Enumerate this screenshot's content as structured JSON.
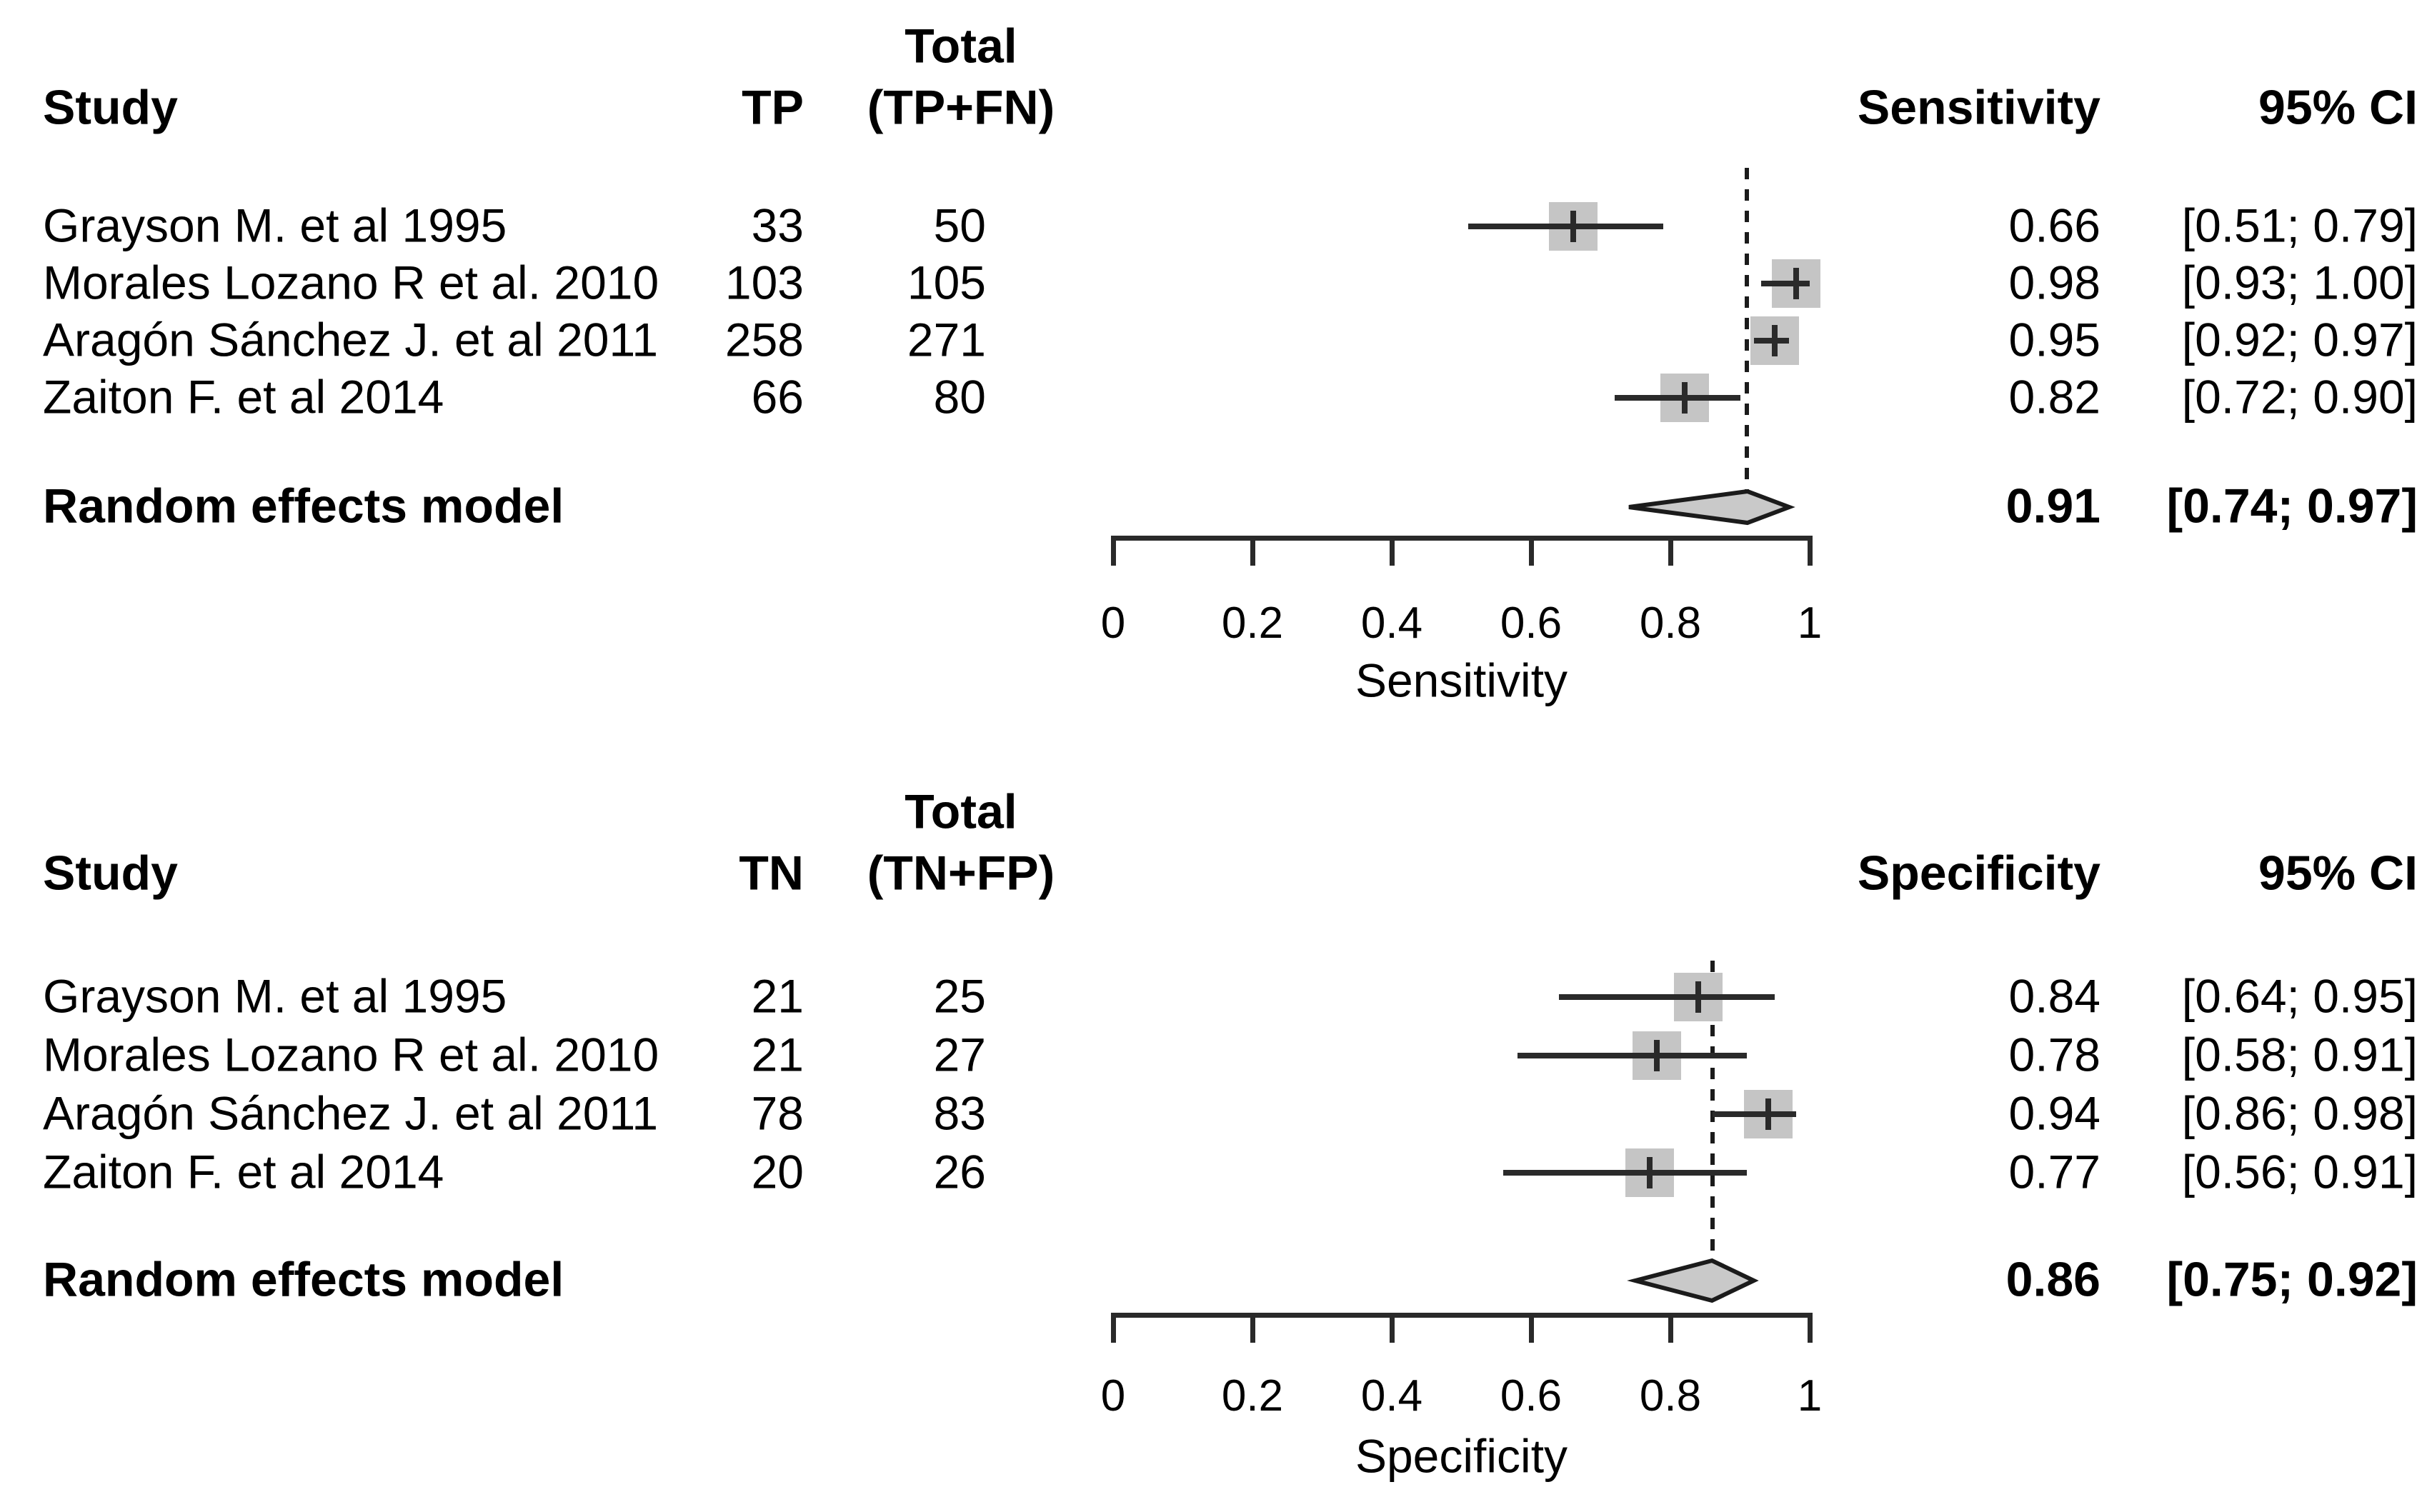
{
  "page": {
    "background": "#ffffff",
    "text_color": "#000000"
  },
  "colors": {
    "marker_fill": "#c5c5c5",
    "diamond_fill": "#c9c9c9",
    "line": "#2a2a2a",
    "reference_line": "#1b1b1b",
    "text": "#000000",
    "background": "#ffffff"
  },
  "chart_data": [
    {
      "type": "forest",
      "panel": "sensitivity",
      "columns": {
        "study": "Study",
        "count": "TP",
        "total_line1": "Total",
        "total_line2": "(TP+FN)",
        "estimate": "Sensitivity",
        "ci": "95% CI"
      },
      "rows": [
        {
          "study": "Grayson M. et al 1995",
          "count": "33",
          "total": "50",
          "estimate": 0.66,
          "estimate_label": "0.66",
          "ci_lower": 0.51,
          "ci_upper": 0.79,
          "ci_label": "[0.51; 0.79]"
        },
        {
          "study": "Morales Lozano R et al. 2010",
          "count": "103",
          "total": "105",
          "estimate": 0.98,
          "estimate_label": "0.98",
          "ci_lower": 0.93,
          "ci_upper": 1.0,
          "ci_label": "[0.93; 1.00]"
        },
        {
          "study": "Aragón Sánchez J. et al 2011",
          "count": "258",
          "total": "271",
          "estimate": 0.95,
          "estimate_label": "0.95",
          "ci_lower": 0.92,
          "ci_upper": 0.97,
          "ci_label": "[0.92; 0.97]"
        },
        {
          "study": "Zaiton F. et al 2014",
          "count": "66",
          "total": "80",
          "estimate": 0.82,
          "estimate_label": "0.82",
          "ci_lower": 0.72,
          "ci_upper": 0.9,
          "ci_label": "[0.72; 0.90]"
        }
      ],
      "summary": {
        "label": "Random effects model",
        "estimate": 0.91,
        "estimate_label": "0.91",
        "ci_lower": 0.74,
        "ci_upper": 0.97,
        "ci_label": "[0.74; 0.97]"
      },
      "axis": {
        "min": 0,
        "max": 1,
        "tick_values": [
          0,
          0.2,
          0.4,
          0.6,
          0.8,
          1
        ],
        "ticks": [
          "0",
          "0.2",
          "0.4",
          "0.6",
          "0.8",
          "1"
        ],
        "label": "Sensitivity",
        "reference_line": 0.91,
        "grid": false
      }
    },
    {
      "type": "forest",
      "panel": "specificity",
      "columns": {
        "study": "Study",
        "count": "TN",
        "total_line1": "Total",
        "total_line2": "(TN+FP)",
        "estimate": "Specificity",
        "ci": "95% CI"
      },
      "rows": [
        {
          "study": "Grayson M. et al 1995",
          "count": "21",
          "total": "25",
          "estimate": 0.84,
          "estimate_label": "0.84",
          "ci_lower": 0.64,
          "ci_upper": 0.95,
          "ci_label": "[0.64; 0.95]"
        },
        {
          "study": "Morales Lozano R et al. 2010",
          "count": "21",
          "total": "27",
          "estimate": 0.78,
          "estimate_label": "0.78",
          "ci_lower": 0.58,
          "ci_upper": 0.91,
          "ci_label": "[0.58; 0.91]"
        },
        {
          "study": "Aragón Sánchez J. et al 2011",
          "count": "78",
          "total": "83",
          "estimate": 0.94,
          "estimate_label": "0.94",
          "ci_lower": 0.86,
          "ci_upper": 0.98,
          "ci_label": "[0.86; 0.98]"
        },
        {
          "study": "Zaiton F. et al 2014",
          "count": "20",
          "total": "26",
          "estimate": 0.77,
          "estimate_label": "0.77",
          "ci_lower": 0.56,
          "ci_upper": 0.91,
          "ci_label": "[0.56; 0.91]"
        }
      ],
      "summary": {
        "label": "Random effects model",
        "estimate": 0.86,
        "estimate_label": "0.86",
        "ci_lower": 0.75,
        "ci_upper": 0.92,
        "ci_label": "[0.75; 0.92]"
      },
      "axis": {
        "min": 0,
        "max": 1,
        "tick_values": [
          0,
          0.2,
          0.4,
          0.6,
          0.8,
          1
        ],
        "ticks": [
          "0",
          "0.2",
          "0.4",
          "0.6",
          "0.8",
          "1"
        ],
        "label": "Specificity",
        "reference_line": 0.86,
        "grid": false
      }
    }
  ]
}
